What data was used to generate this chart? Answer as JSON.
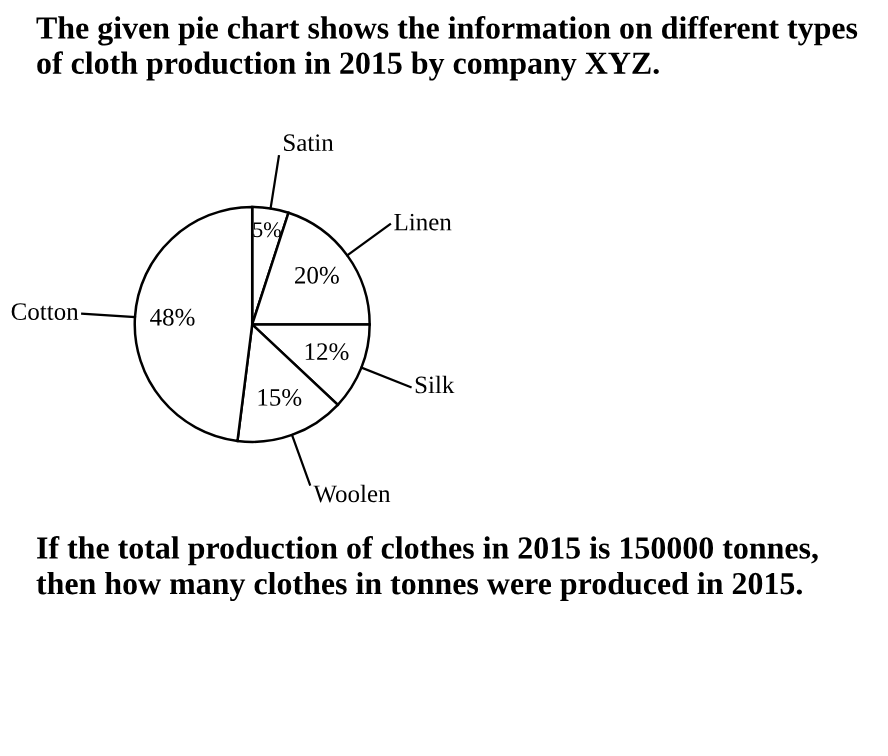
{
  "chart_data": {
    "type": "pie",
    "title": "The given pie chart shows the information on different types of cloth production in 2015 by company XYZ.",
    "categories": [
      "Satin",
      "Linen",
      "Silk",
      "Woolen",
      "Cotton"
    ],
    "values": [
      5,
      20,
      12,
      15,
      48
    ],
    "colors": [
      "#ffffff",
      "#ffffff",
      "#ffffff",
      "#ffffff",
      "#ffffff"
    ],
    "value_labels": [
      "5%",
      "20%",
      "12%",
      "15%",
      "48%"
    ],
    "annotations": [
      "If the total production of clothes in 2015 is 150000 tonnes, then how many clothes in tonnes were produced in 2015."
    ]
  }
}
